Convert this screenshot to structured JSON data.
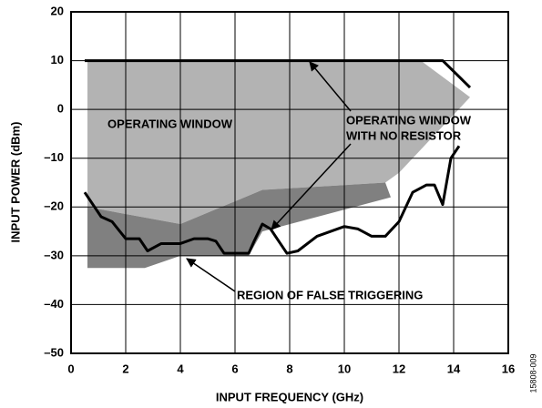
{
  "chart_data": {
    "type": "line",
    "xlabel": "INPUT FREQUENCY (GHz)",
    "ylabel": "INPUT POWER (dBm)",
    "xlim": [
      0,
      16
    ],
    "xticks": [
      0,
      2,
      4,
      6,
      8,
      10,
      12,
      14,
      16
    ],
    "ylim": [
      -50,
      20
    ],
    "yticks": [
      {
        "value": -50,
        "label": "–50"
      },
      {
        "value": -40,
        "label": "–40"
      },
      {
        "value": -30,
        "label": "–30"
      },
      {
        "value": -20,
        "label": "–20"
      },
      {
        "value": -10,
        "label": "–10"
      },
      0,
      10,
      20
    ],
    "grid": true,
    "regions": [
      {
        "color": "#b3b3b3",
        "x": [
          0.6,
          12.8,
          14.6,
          12,
          11.5,
          7,
          4,
          0.6
        ],
        "y": [
          10,
          10,
          2.5,
          -13,
          -15,
          -16.5,
          -23.5,
          -20
        ]
      },
      {
        "color": "#808080",
        "x": [
          0.6,
          4,
          7,
          11.5,
          11.7,
          7,
          6.5,
          4,
          2.7,
          0.6
        ],
        "y": [
          -20,
          -23.5,
          -16.5,
          -15,
          -18,
          -25,
          -30,
          -30,
          -32.5,
          -32.5
        ]
      }
    ],
    "series": [
      {
        "color": "#000000",
        "x": [
          0.5,
          13.6,
          14.6
        ],
        "values": [
          10,
          10,
          4.5
        ]
      },
      {
        "color": "#000000",
        "x": [
          0.5,
          1.1,
          1.5,
          2,
          2.5,
          2.8,
          3.3,
          4,
          4.5,
          5,
          5.3,
          5.6,
          6.5,
          6.7,
          7,
          7.3,
          7.6,
          7.9,
          8.3,
          9,
          9.5,
          10,
          10.5,
          11,
          11.5,
          12,
          12.5,
          13,
          13.3,
          13.6,
          13.9,
          14.2
        ],
        "values": [
          -17,
          -22,
          -23,
          -26.5,
          -26.5,
          -29,
          -27.5,
          -27.5,
          -26.5,
          -26.5,
          -27,
          -29.5,
          -29.5,
          -27,
          -23.5,
          -24.5,
          -27,
          -29.5,
          -29,
          -26,
          -25,
          -24,
          -24.5,
          -26,
          -26,
          -23,
          -17,
          -15.5,
          -15.5,
          -19.5,
          -10,
          -7.5
        ]
      }
    ],
    "annotations": [
      "OPERATING WINDOW",
      "OPERATING WINDOW",
      "WITH NO RESISTOR",
      "REGION OF FALSE TRIGGERING"
    ],
    "figure_id": "15808-009"
  }
}
